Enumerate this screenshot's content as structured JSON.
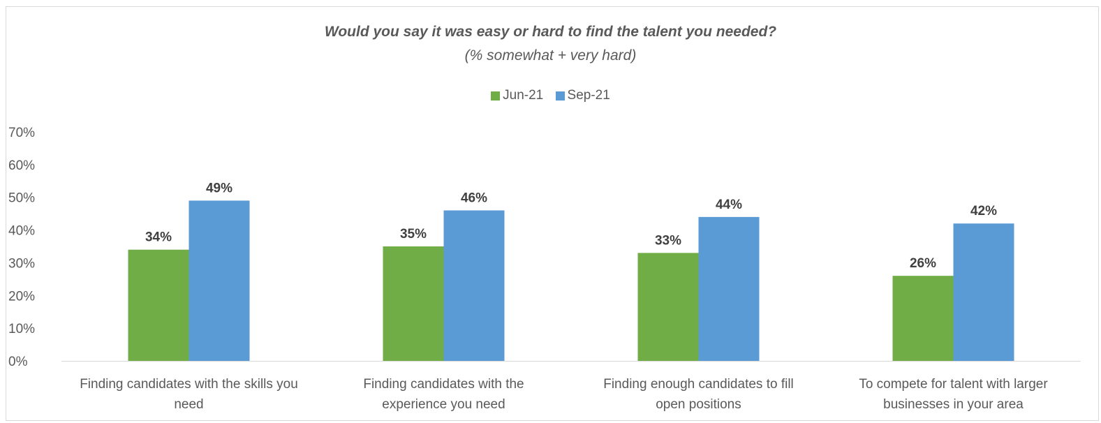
{
  "chart_data": {
    "type": "bar",
    "title": "Would you say it was easy or hard to find the talent you needed?",
    "subtitle": "(% somewhat + very hard)",
    "categories": [
      [
        "Finding candidates with the skills you",
        "need"
      ],
      [
        "Finding candidates with the",
        "experience you need"
      ],
      [
        "Finding enough candidates to fill",
        "open positions"
      ],
      [
        "To compete for talent with larger",
        "businesses in your area"
      ]
    ],
    "series": [
      {
        "name": "Jun-21",
        "color": "#70ad47",
        "values": [
          34,
          35,
          33,
          26
        ],
        "labels": [
          "34%",
          "35%",
          "33%",
          "26%"
        ]
      },
      {
        "name": "Sep-21",
        "color": "#5b9bd5",
        "values": [
          49,
          46,
          44,
          42
        ],
        "labels": [
          "49%",
          "46%",
          "44%",
          "42%"
        ]
      }
    ],
    "ylim": [
      0,
      70
    ],
    "yticks": [
      "0%",
      "10%",
      "20%",
      "30%",
      "40%",
      "50%",
      "60%",
      "70%"
    ],
    "grid": false,
    "legend_position": "top"
  }
}
